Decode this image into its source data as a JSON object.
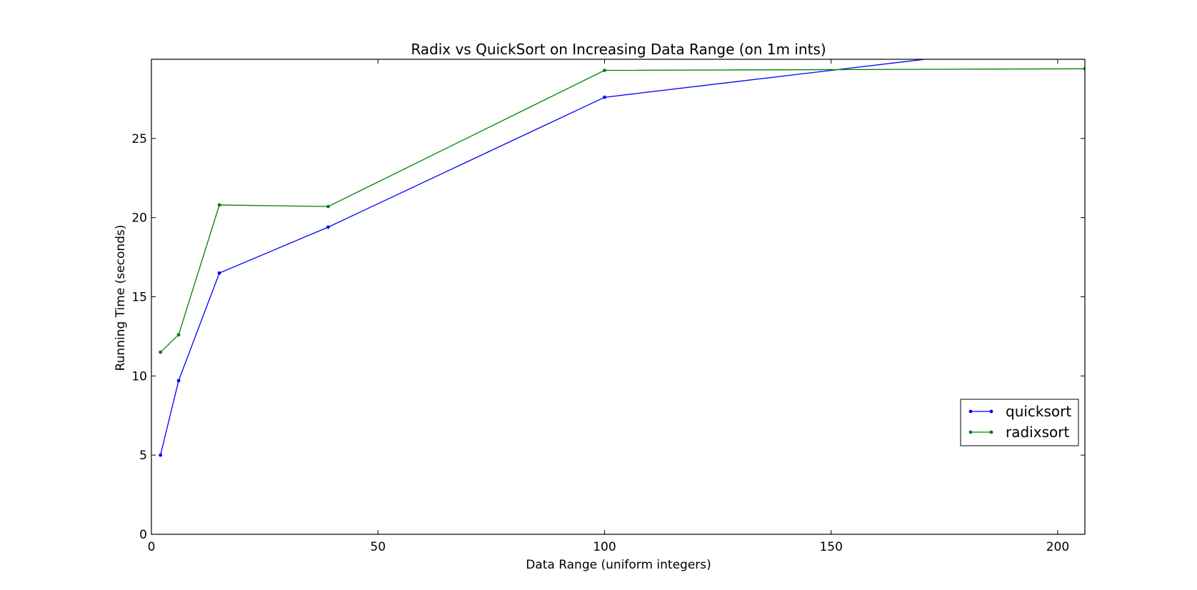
{
  "chart_data": {
    "type": "line",
    "title": "Radix vs QuickSort on Increasing Data Range (on 1m ints)",
    "xlabel": "Data Range (uniform integers)",
    "ylabel": "Running Time (seconds)",
    "xlim": [
      0,
      206
    ],
    "ylim": [
      0,
      30
    ],
    "xticks": [
      0,
      50,
      100,
      150,
      200
    ],
    "yticks": [
      0,
      5,
      10,
      15,
      20,
      25
    ],
    "grid": false,
    "legend_position": "center-right",
    "series": [
      {
        "name": "quicksort",
        "color": "#0000ff",
        "x": [
          2,
          6,
          15,
          39,
          100,
          206
        ],
        "y": [
          5.0,
          9.7,
          16.5,
          19.4,
          27.6,
          31.2
        ]
      },
      {
        "name": "radixsort",
        "color": "#008000",
        "x": [
          2,
          6,
          15,
          39,
          100,
          206
        ],
        "y": [
          11.5,
          12.6,
          20.8,
          20.7,
          29.3,
          29.4
        ]
      }
    ]
  }
}
